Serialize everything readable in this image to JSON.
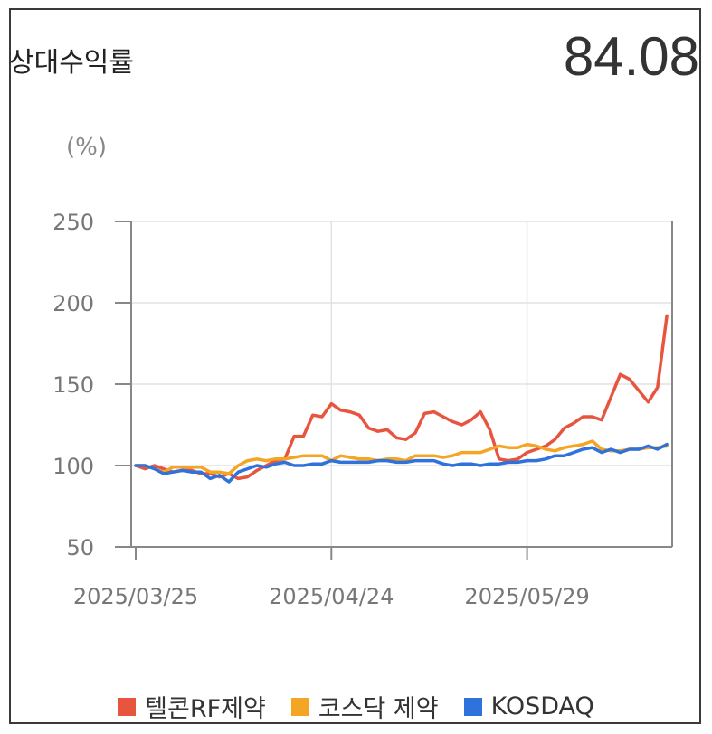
{
  "header": {
    "title": "상대수익률",
    "value": "84.08"
  },
  "chart_data": {
    "type": "line",
    "unit_label": "(%)",
    "ylim": [
      50,
      250
    ],
    "yticks": [
      50,
      100,
      150,
      200,
      250
    ],
    "xtick_labels": [
      "2025/03/25",
      "2025/04/24",
      "2025/05/29"
    ],
    "xtick_index": [
      0,
      21,
      42
    ],
    "n_points": 58,
    "grid": true,
    "legend_position": "bottom",
    "series": [
      {
        "name": "텔콘RF제약",
        "color": "#e8553f",
        "values": [
          100,
          98,
          100,
          98,
          96,
          97,
          97,
          95,
          95,
          93,
          95,
          92,
          93,
          97,
          100,
          103,
          104,
          118,
          118,
          131,
          130,
          138,
          134,
          133,
          131,
          123,
          121,
          122,
          117,
          116,
          120,
          132,
          133,
          130,
          127,
          125,
          128,
          133,
          122,
          104,
          103,
          104,
          108,
          110,
          112,
          116,
          123,
          126,
          130,
          130,
          128,
          142,
          156,
          153,
          146,
          139,
          148,
          192
        ]
      },
      {
        "name": "코스닥 제약",
        "color": "#f5a524",
        "values": [
          100,
          100,
          98,
          96,
          99,
          99,
          99,
          99,
          96,
          96,
          95,
          100,
          103,
          104,
          103,
          104,
          104,
          105,
          106,
          106,
          106,
          103,
          106,
          105,
          104,
          104,
          103,
          104,
          104,
          103,
          106,
          106,
          106,
          105,
          106,
          108,
          108,
          108,
          110,
          112,
          111,
          111,
          113,
          112,
          110,
          109,
          111,
          112,
          113,
          115,
          110,
          109,
          109,
          110,
          110,
          111,
          111,
          112
        ]
      },
      {
        "name": "KOSDAQ",
        "color": "#2f72dc",
        "values": [
          100,
          100,
          98,
          95,
          96,
          97,
          96,
          96,
          92,
          94,
          90,
          96,
          98,
          100,
          99,
          101,
          102,
          100,
          100,
          101,
          101,
          103,
          102,
          102,
          102,
          102,
          103,
          103,
          102,
          102,
          103,
          103,
          103,
          101,
          100,
          101,
          101,
          100,
          101,
          101,
          102,
          102,
          103,
          103,
          104,
          106,
          106,
          108,
          110,
          111,
          108,
          110,
          108,
          110,
          110,
          112,
          110,
          113
        ]
      }
    ]
  }
}
